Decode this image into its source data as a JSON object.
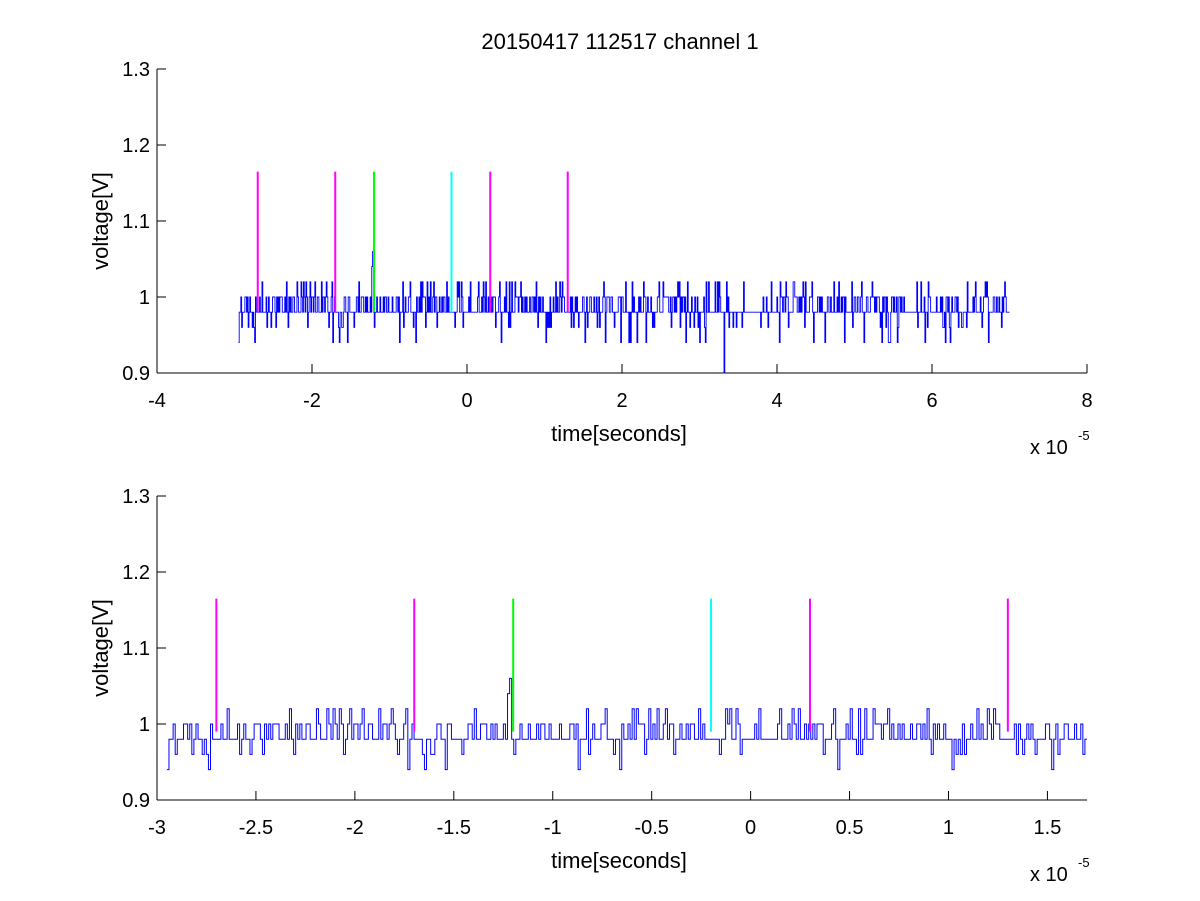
{
  "figure": {
    "title": "20150417 112517 channel 1",
    "background": "#ffffff"
  },
  "chart_data": [
    {
      "type": "line",
      "title": "20150417 112517 channel 1",
      "xlabel": "time[seconds]",
      "ylabel": "voltage[V]",
      "x_exponent_label": "x 10",
      "x_exponent": "-5",
      "xlim": [
        -4,
        8
      ],
      "ylim": [
        0.9,
        1.3
      ],
      "xticks": [
        -4,
        -2,
        0,
        2,
        4,
        6,
        8
      ],
      "xtick_labels": [
        "-4",
        "-2",
        "0",
        "2",
        "4",
        "6",
        "8"
      ],
      "yticks": [
        0.9,
        1.0,
        1.1,
        1.2,
        1.3
      ],
      "ytick_labels": [
        "0.9",
        "1",
        "1.1",
        "1.2",
        "1.3"
      ],
      "grid": false,
      "signal": {
        "color": "#0000ff",
        "x_start": -2.95,
        "x_end": 7.0,
        "levels": [
          0.94,
          0.96,
          0.98,
          1.0,
          1.02
        ],
        "baseline": 0.98,
        "spike": {
          "x": -1.22,
          "y": 1.06
        },
        "dip": {
          "x": 3.32,
          "y": 0.9
        }
      },
      "markers": [
        {
          "x": -2.7,
          "y0": 0.98,
          "y1": 1.165,
          "color": "#ff00ff"
        },
        {
          "x": -1.7,
          "y0": 0.98,
          "y1": 1.165,
          "color": "#ff00ff"
        },
        {
          "x": -1.2,
          "y0": 0.98,
          "y1": 1.165,
          "color": "#00ff00"
        },
        {
          "x": -0.2,
          "y0": 0.98,
          "y1": 1.165,
          "color": "#00ffff"
        },
        {
          "x": 0.3,
          "y0": 0.98,
          "y1": 1.165,
          "color": "#ff00ff"
        },
        {
          "x": 1.3,
          "y0": 0.98,
          "y1": 1.165,
          "color": "#ff00ff"
        }
      ]
    },
    {
      "type": "line",
      "title": "",
      "xlabel": "time[seconds]",
      "ylabel": "voltage[V]",
      "x_exponent_label": "x 10",
      "x_exponent": "-5",
      "xlim": [
        -3.0,
        1.7
      ],
      "ylim": [
        0.9,
        1.3
      ],
      "xticks": [
        -3,
        -2.5,
        -2,
        -1.5,
        -1,
        -0.5,
        0,
        0.5,
        1,
        1.5
      ],
      "xtick_labels": [
        "-3",
        "-2.5",
        "-2",
        "-1.5",
        "-1",
        "-0.5",
        "0",
        "0.5",
        "1",
        "1.5"
      ],
      "yticks": [
        0.9,
        1.0,
        1.1,
        1.2,
        1.3
      ],
      "ytick_labels": [
        "0.9",
        "1",
        "1.1",
        "1.2",
        "1.3"
      ],
      "grid": false,
      "signal": {
        "color": "#0000ff",
        "x_start": -2.95,
        "x_end": 1.7,
        "levels": [
          0.94,
          0.96,
          0.98,
          1.0,
          1.02
        ],
        "baseline": 0.98,
        "spike": {
          "x": -1.22,
          "y": 1.06
        }
      },
      "markers": [
        {
          "x": -2.7,
          "y0": 0.99,
          "y1": 1.165,
          "color": "#ff00ff"
        },
        {
          "x": -1.7,
          "y0": 0.99,
          "y1": 1.165,
          "color": "#ff00ff"
        },
        {
          "x": -1.2,
          "y0": 0.99,
          "y1": 1.165,
          "color": "#00ff00"
        },
        {
          "x": -0.2,
          "y0": 0.99,
          "y1": 1.165,
          "color": "#00ffff"
        },
        {
          "x": 0.3,
          "y0": 0.99,
          "y1": 1.165,
          "color": "#ff00ff"
        },
        {
          "x": 1.3,
          "y0": 0.99,
          "y1": 1.165,
          "color": "#ff00ff"
        }
      ]
    }
  ]
}
